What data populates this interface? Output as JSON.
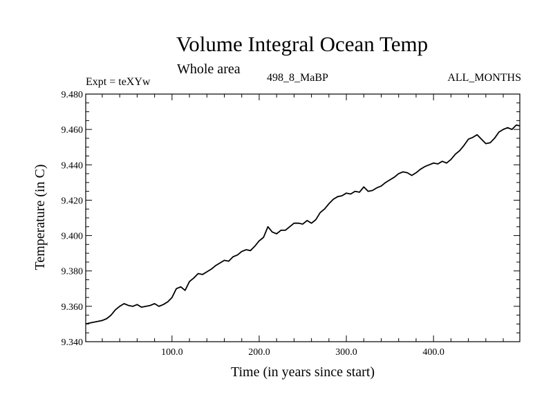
{
  "chart_data": {
    "type": "line",
    "title": "Volume Integral Ocean Temp",
    "subtitle": "Whole area",
    "header_left": "Expt = teXYw",
    "header_center": "498_8_MaBP",
    "header_right": "ALL_MONTHS",
    "xlabel": "Time (in years since start)",
    "ylabel": "Temperature (in C)",
    "xlim": [
      1,
      499
    ],
    "ylim": [
      9.34,
      9.48
    ],
    "x_ticks": [
      100,
      200,
      300,
      400
    ],
    "x_tick_labels": [
      "100.0",
      "200.0",
      "300.0",
      "400.0"
    ],
    "y_ticks": [
      9.34,
      9.36,
      9.38,
      9.4,
      9.42,
      9.44,
      9.46,
      9.48
    ],
    "y_tick_labels": [
      "9.340",
      "9.360",
      "9.380",
      "9.400",
      "9.420",
      "9.440",
      "9.460",
      "9.480"
    ],
    "grid": false,
    "series": [
      {
        "color": "#000000",
        "x": [
          1,
          5,
          10,
          15,
          20,
          25,
          30,
          35,
          40,
          45,
          50,
          55,
          60,
          65,
          70,
          75,
          80,
          85,
          90,
          95,
          100,
          105,
          110,
          115,
          120,
          125,
          130,
          135,
          140,
          145,
          150,
          155,
          160,
          165,
          170,
          175,
          180,
          185,
          190,
          195,
          200,
          205,
          210,
          215,
          220,
          225,
          230,
          235,
          240,
          245,
          250,
          255,
          260,
          265,
          270,
          275,
          280,
          285,
          290,
          295,
          300,
          305,
          310,
          315,
          320,
          325,
          330,
          335,
          340,
          345,
          350,
          355,
          360,
          365,
          370,
          375,
          380,
          385,
          390,
          395,
          400,
          405,
          410,
          415,
          420,
          425,
          430,
          435,
          440,
          445,
          450,
          455,
          460,
          465,
          470,
          475,
          480,
          485,
          490,
          495,
          499
        ],
        "y": [
          9.35,
          9.3505,
          9.351,
          9.3515,
          9.352,
          9.353,
          9.355,
          9.358,
          9.36,
          9.3615,
          9.3605,
          9.36,
          9.361,
          9.3595,
          9.36,
          9.3605,
          9.3615,
          9.36,
          9.361,
          9.3625,
          9.365,
          9.37,
          9.371,
          9.369,
          9.374,
          9.376,
          9.3785,
          9.378,
          9.3795,
          9.381,
          9.383,
          9.3845,
          9.386,
          9.3855,
          9.388,
          9.389,
          9.391,
          9.392,
          9.3915,
          9.394,
          9.397,
          9.399,
          9.405,
          9.402,
          9.401,
          9.403,
          9.403,
          9.405,
          9.407,
          9.407,
          9.4065,
          9.4085,
          9.407,
          9.409,
          9.413,
          9.415,
          9.418,
          9.4205,
          9.422,
          9.4225,
          9.424,
          9.4235,
          9.425,
          9.4245,
          9.4275,
          9.425,
          9.4255,
          9.427,
          9.428,
          9.43,
          9.4315,
          9.433,
          9.435,
          9.436,
          9.4355,
          9.434,
          9.4355,
          9.4375,
          9.439,
          9.44,
          9.441,
          9.4405,
          9.442,
          9.441,
          9.443,
          9.446,
          9.448,
          9.451,
          9.4545,
          9.4555,
          9.457,
          9.4545,
          9.452,
          9.4525,
          9.455,
          9.4585,
          9.46,
          9.461,
          9.46,
          9.4625,
          9.462
        ]
      }
    ]
  }
}
